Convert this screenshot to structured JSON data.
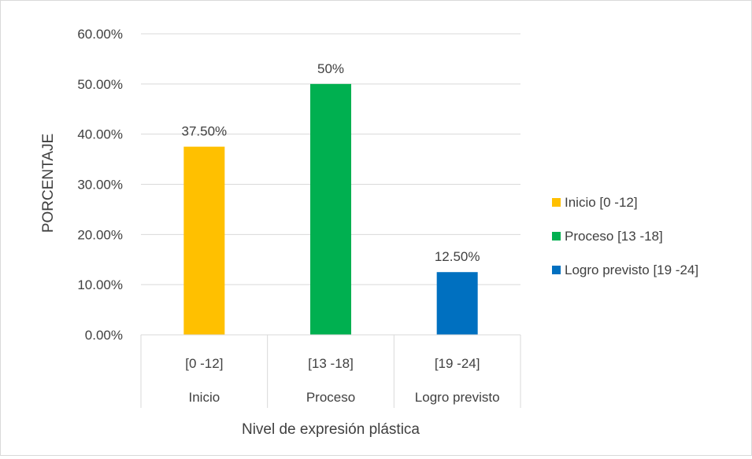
{
  "chart_data": {
    "type": "bar",
    "title": "",
    "xlabel": "Nivel de expresión plástica",
    "ylabel": "PORCENTAJE",
    "ylim": [
      0,
      60
    ],
    "y_ticks": [
      "0.00%",
      "10.00%",
      "20.00%",
      "30.00%",
      "40.00%",
      "50.00%",
      "60.00%"
    ],
    "categories": [
      {
        "range": "[0 -12]",
        "group": "Inicio"
      },
      {
        "range": "[13 -18]",
        "group": "Proceso"
      },
      {
        "range": "[19 -24]",
        "group": "Logro previsto"
      }
    ],
    "values": [
      37.5,
      50,
      12.5
    ],
    "data_labels": [
      "37.50%",
      "50%",
      "12.50%"
    ],
    "colors": [
      "#ffc000",
      "#00b050",
      "#0070c0"
    ],
    "grid": true,
    "legend_position": "right",
    "legend": [
      "Inicio [0 -12]",
      "Proceso [13 -18]",
      "Logro previsto [19 -24]"
    ]
  }
}
